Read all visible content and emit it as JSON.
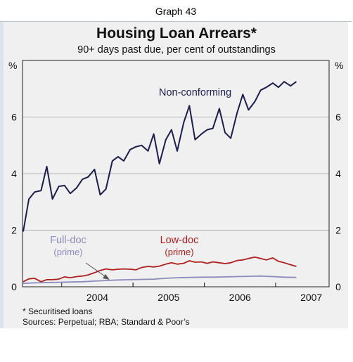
{
  "header": {
    "graph_label": "Graph 43"
  },
  "chart_data": {
    "type": "line",
    "title": "Housing Loan Arrears*",
    "subtitle": "90+ days past due, per cent of outstandings",
    "ylabel_left": "%",
    "ylabel_right": "%",
    "ylim": [
      0,
      8
    ],
    "yticks": [
      0,
      2,
      4,
      6
    ],
    "xlim": [
      2003.45,
      2007.75
    ],
    "xticks": [
      "2004",
      "2005",
      "2006",
      "2007"
    ],
    "grid": true,
    "series": [
      {
        "name": "Non-conforming",
        "color": "#1c1c4e",
        "values": [
          [
            2003.46,
            1.95
          ],
          [
            2003.54,
            3.1
          ],
          [
            2003.62,
            3.35
          ],
          [
            2003.71,
            3.4
          ],
          [
            2003.79,
            4.25
          ],
          [
            2003.87,
            3.1
          ],
          [
            2003.96,
            3.55
          ],
          [
            2004.04,
            3.58
          ],
          [
            2004.12,
            3.3
          ],
          [
            2004.21,
            3.5
          ],
          [
            2004.29,
            3.8
          ],
          [
            2004.37,
            3.88
          ],
          [
            2004.46,
            4.15
          ],
          [
            2004.54,
            3.25
          ],
          [
            2004.62,
            3.45
          ],
          [
            2004.71,
            4.45
          ],
          [
            2004.79,
            4.6
          ],
          [
            2004.87,
            4.45
          ],
          [
            2004.96,
            4.85
          ],
          [
            2005.04,
            4.95
          ],
          [
            2005.12,
            5.0
          ],
          [
            2005.21,
            4.8
          ],
          [
            2005.29,
            5.4
          ],
          [
            2005.37,
            4.35
          ],
          [
            2005.46,
            5.2
          ],
          [
            2005.54,
            5.55
          ],
          [
            2005.62,
            4.8
          ],
          [
            2005.71,
            5.8
          ],
          [
            2005.79,
            6.4
          ],
          [
            2005.87,
            5.2
          ],
          [
            2005.96,
            5.4
          ],
          [
            2006.04,
            5.55
          ],
          [
            2006.12,
            5.6
          ],
          [
            2006.21,
            6.3
          ],
          [
            2006.29,
            5.45
          ],
          [
            2006.37,
            5.25
          ],
          [
            2006.46,
            6.15
          ],
          [
            2006.54,
            6.8
          ],
          [
            2006.62,
            6.25
          ],
          [
            2006.71,
            6.55
          ],
          [
            2006.79,
            6.95
          ],
          [
            2006.87,
            7.05
          ],
          [
            2006.96,
            7.2
          ],
          [
            2007.04,
            7.05
          ],
          [
            2007.12,
            7.25
          ],
          [
            2007.21,
            7.1
          ],
          [
            2007.29,
            7.25
          ]
        ]
      },
      {
        "name": "Low-doc",
        "name_line2": "(prime)",
        "color": "#b01e1e",
        "values": [
          [
            2003.46,
            0.18
          ],
          [
            2003.54,
            0.28
          ],
          [
            2003.62,
            0.3
          ],
          [
            2003.71,
            0.18
          ],
          [
            2003.79,
            0.25
          ],
          [
            2003.87,
            0.25
          ],
          [
            2003.96,
            0.27
          ],
          [
            2004.04,
            0.35
          ],
          [
            2004.12,
            0.32
          ],
          [
            2004.21,
            0.36
          ],
          [
            2004.29,
            0.38
          ],
          [
            2004.37,
            0.42
          ],
          [
            2004.46,
            0.5
          ],
          [
            2004.54,
            0.58
          ],
          [
            2004.62,
            0.63
          ],
          [
            2004.71,
            0.6
          ],
          [
            2004.79,
            0.62
          ],
          [
            2004.87,
            0.63
          ],
          [
            2004.96,
            0.62
          ],
          [
            2005.04,
            0.6
          ],
          [
            2005.12,
            0.68
          ],
          [
            2005.21,
            0.72
          ],
          [
            2005.29,
            0.7
          ],
          [
            2005.37,
            0.73
          ],
          [
            2005.46,
            0.8
          ],
          [
            2005.54,
            0.85
          ],
          [
            2005.62,
            0.8
          ],
          [
            2005.71,
            0.83
          ],
          [
            2005.79,
            0.92
          ],
          [
            2005.87,
            0.87
          ],
          [
            2005.96,
            0.88
          ],
          [
            2006.04,
            0.83
          ],
          [
            2006.12,
            0.88
          ],
          [
            2006.21,
            0.85
          ],
          [
            2006.29,
            0.82
          ],
          [
            2006.37,
            0.85
          ],
          [
            2006.46,
            0.93
          ],
          [
            2006.54,
            0.95
          ],
          [
            2006.62,
            1.0
          ],
          [
            2006.71,
            1.05
          ],
          [
            2006.79,
            1.0
          ],
          [
            2006.87,
            0.95
          ],
          [
            2006.96,
            1.02
          ],
          [
            2007.04,
            0.9
          ],
          [
            2007.12,
            0.85
          ],
          [
            2007.21,
            0.78
          ],
          [
            2007.29,
            0.72
          ]
        ]
      },
      {
        "name": "Full-doc",
        "name_line2": "(prime)",
        "color": "#8b8bbd",
        "values": [
          [
            2003.46,
            0.12
          ],
          [
            2003.62,
            0.14
          ],
          [
            2003.79,
            0.15
          ],
          [
            2003.96,
            0.16
          ],
          [
            2004.12,
            0.17
          ],
          [
            2004.29,
            0.18
          ],
          [
            2004.46,
            0.2
          ],
          [
            2004.62,
            0.22
          ],
          [
            2004.79,
            0.24
          ],
          [
            2004.96,
            0.25
          ],
          [
            2005.12,
            0.26
          ],
          [
            2005.29,
            0.27
          ],
          [
            2005.46,
            0.3
          ],
          [
            2005.62,
            0.32
          ],
          [
            2005.79,
            0.33
          ],
          [
            2005.96,
            0.34
          ],
          [
            2006.12,
            0.34
          ],
          [
            2006.29,
            0.35
          ],
          [
            2006.46,
            0.36
          ],
          [
            2006.62,
            0.37
          ],
          [
            2006.79,
            0.38
          ],
          [
            2006.96,
            0.36
          ],
          [
            2007.12,
            0.34
          ],
          [
            2007.29,
            0.33
          ]
        ]
      }
    ]
  },
  "notes": {
    "footnote": "*  Securitised loans",
    "sources": "Sources: Perpetual; RBA; Standard & Poor’s"
  }
}
